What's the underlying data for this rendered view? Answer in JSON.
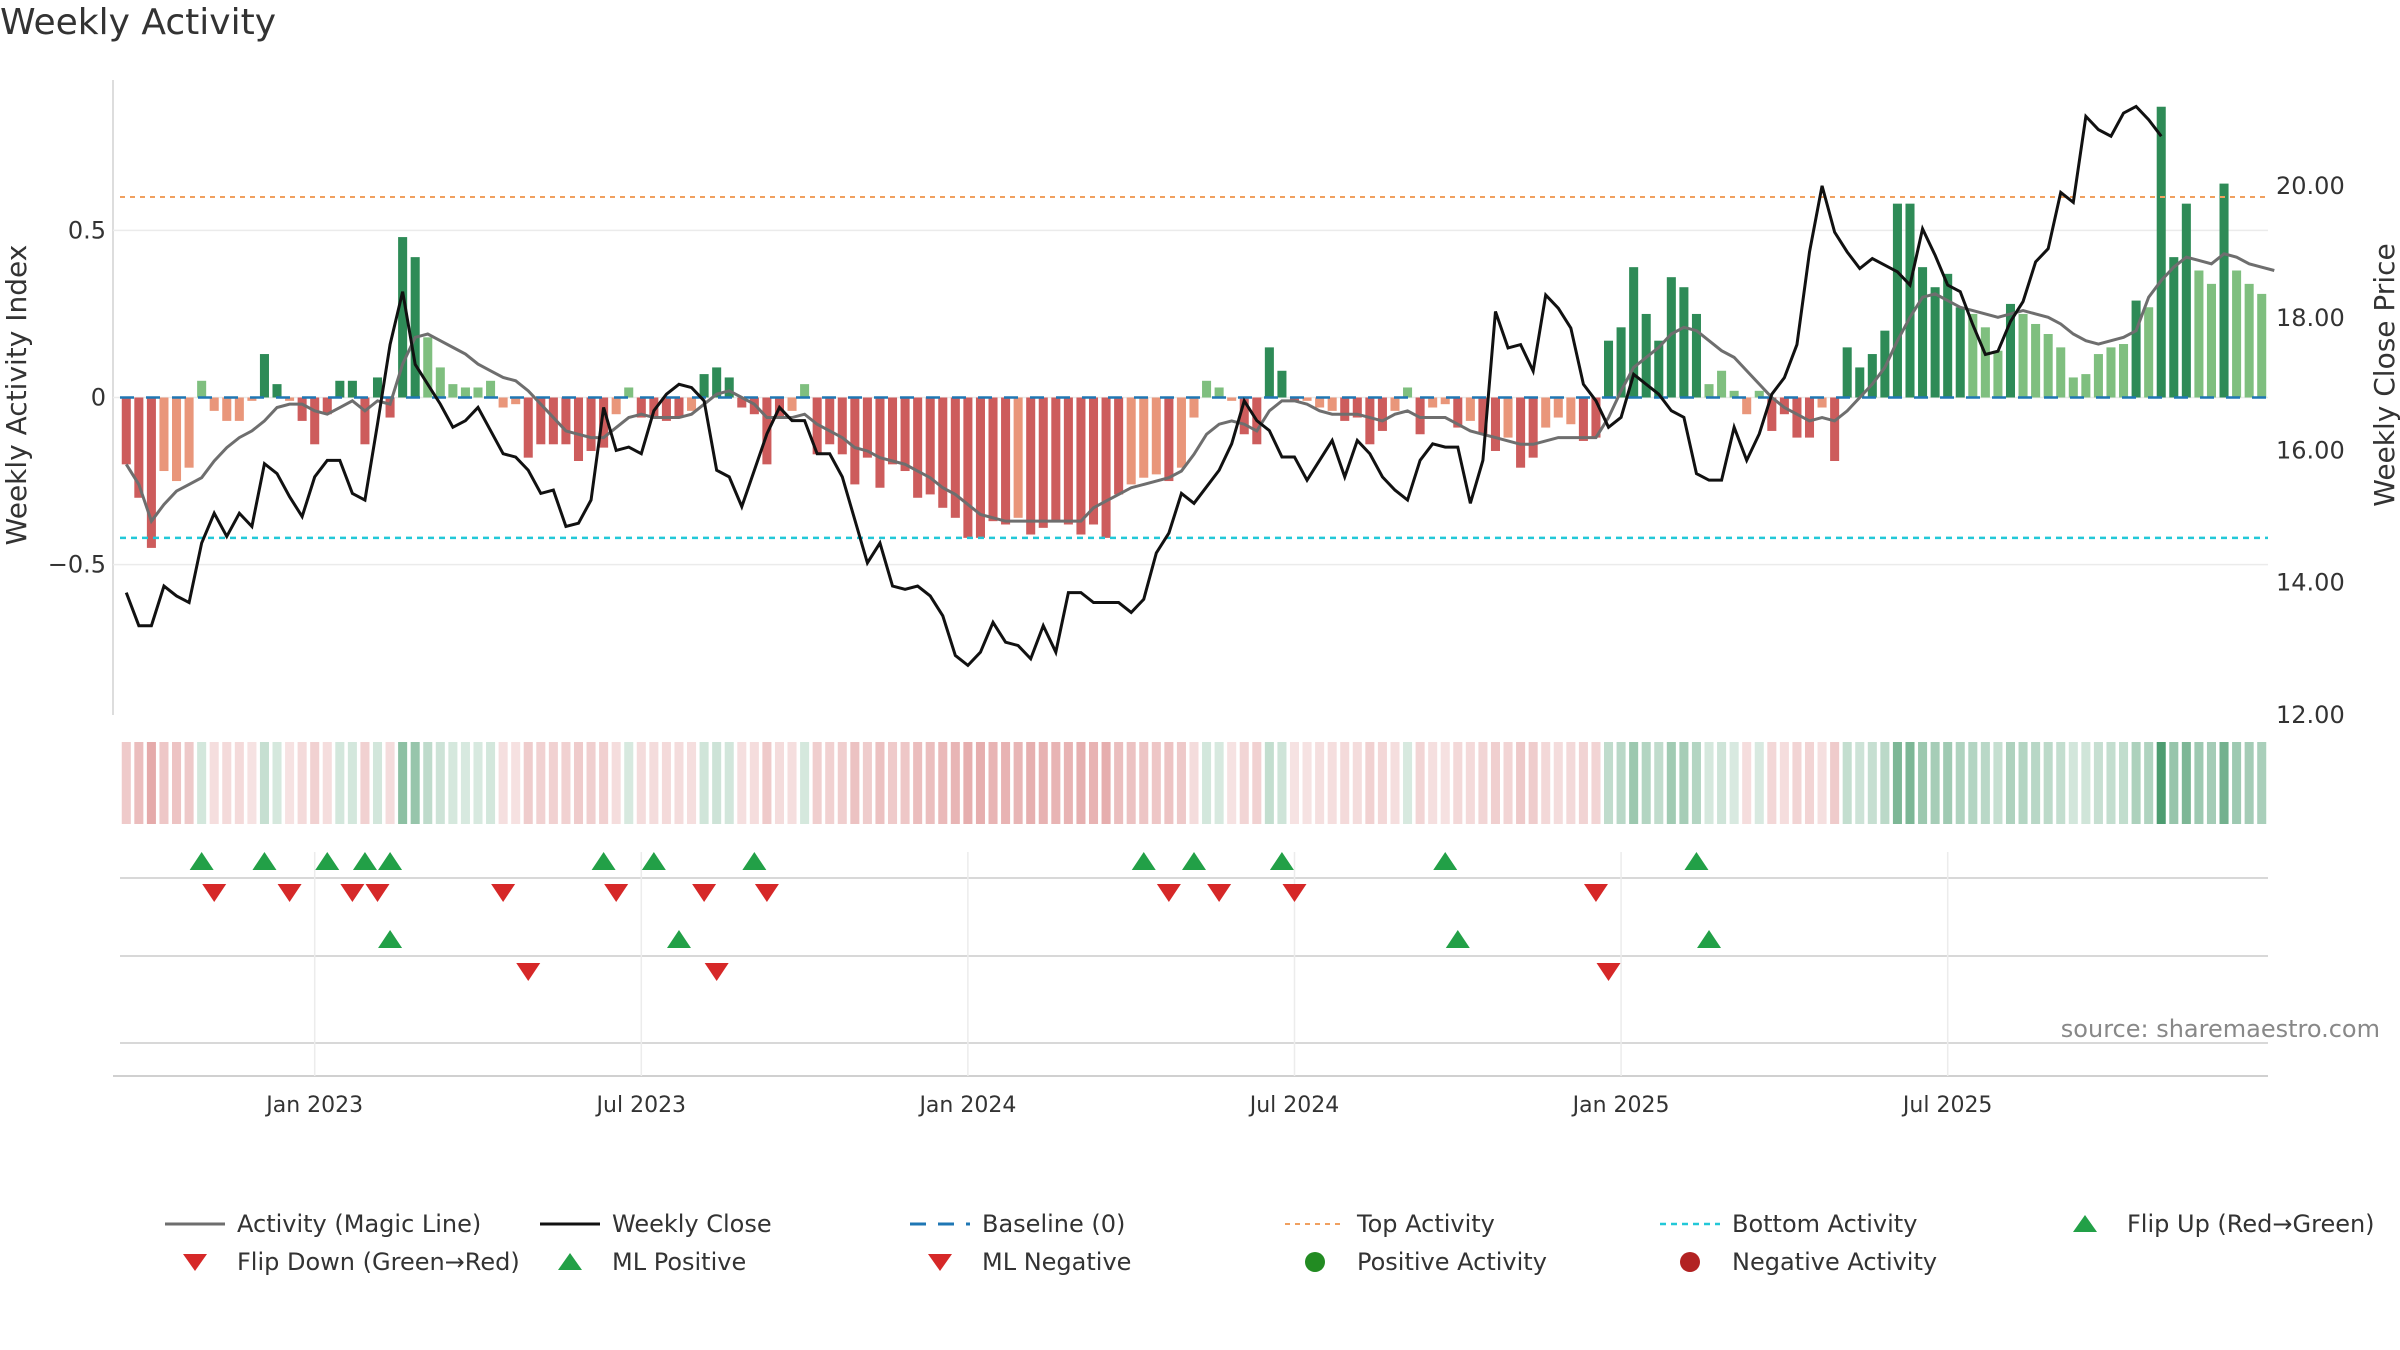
{
  "title": "Weekly Activity",
  "source": "source: sharemaestro.com",
  "colors": {
    "pos_strong": "#2e8b57",
    "pos_light": "#7fbf7f",
    "neg_strong": "#cd5c5c",
    "neg_light": "#e9967a",
    "magic_line": "#6e6e6e",
    "close_line": "#111111",
    "baseline": "#1f77b4",
    "top": "#f0a060",
    "bottom": "#22c8d8",
    "tri_up": "#22a047",
    "tri_down": "#d62828",
    "dot_pos": "#228b22",
    "dot_neg": "#b22222"
  },
  "chart_data": {
    "type": "bar+line",
    "title": "Weekly Activity",
    "ylabel_left": "Weekly Activity Index",
    "ylabel_right": "Weekly Close Price",
    "left_ylim": [
      -0.95,
      0.95
    ],
    "right_ylim": [
      12,
      21.6
    ],
    "left_ticks": [
      {
        "v": 0.5,
        "label": "0.5"
      },
      {
        "v": 0,
        "label": "0"
      },
      {
        "v": -0.5,
        "label": "−0.5"
      }
    ],
    "right_ticks": [
      {
        "v": 20,
        "label": "20.00"
      },
      {
        "v": 18,
        "label": "18.00"
      },
      {
        "v": 16,
        "label": "16.00"
      },
      {
        "v": 14,
        "label": "14.00"
      },
      {
        "v": 12,
        "label": "12.00"
      }
    ],
    "x_ticks": [
      {
        "week": 15,
        "label": "Jan 2023"
      },
      {
        "week": 41,
        "label": "Jul 2023"
      },
      {
        "week": 67,
        "label": "Jan 2024"
      },
      {
        "week": 93,
        "label": "Jul 2024"
      },
      {
        "week": 119,
        "label": "Jan 2025"
      },
      {
        "week": 145,
        "label": "Jul 2025"
      }
    ],
    "top_activity": 0.6,
    "bottom_activity": -0.42,
    "activity": [
      -0.2,
      -0.3,
      -0.45,
      -0.22,
      -0.25,
      -0.21,
      0.05,
      -0.04,
      -0.07,
      -0.07,
      -0.01,
      0.13,
      0.04,
      -0.01,
      -0.07,
      -0.14,
      -0.05,
      0.05,
      0.05,
      -0.14,
      0.06,
      -0.06,
      0.48,
      0.42,
      0.18,
      0.09,
      0.04,
      0.03,
      0.03,
      0.05,
      -0.03,
      -0.02,
      -0.18,
      -0.14,
      -0.14,
      -0.14,
      -0.19,
      -0.16,
      -0.15,
      -0.05,
      0.03,
      -0.06,
      -0.06,
      -0.07,
      -0.06,
      -0.04,
      0.07,
      0.09,
      0.06,
      -0.03,
      -0.05,
      -0.2,
      -0.06,
      -0.04,
      0.04,
      -0.17,
      -0.14,
      -0.17,
      -0.26,
      -0.18,
      -0.27,
      -0.2,
      -0.22,
      -0.3,
      -0.29,
      -0.33,
      -0.36,
      -0.42,
      -0.42,
      -0.37,
      -0.38,
      -0.36,
      -0.41,
      -0.39,
      -0.37,
      -0.38,
      -0.41,
      -0.38,
      -0.42,
      -0.29,
      -0.26,
      -0.24,
      -0.23,
      -0.25,
      -0.21,
      -0.06,
      0.05,
      0.03,
      -0.01,
      -0.11,
      -0.14,
      0.15,
      0.08,
      -0.01,
      -0.01,
      -0.03,
      -0.04,
      -0.07,
      -0.06,
      -0.14,
      -0.1,
      -0.04,
      0.03,
      -0.11,
      -0.03,
      -0.02,
      -0.09,
      -0.07,
      -0.11,
      -0.16,
      -0.12,
      -0.21,
      -0.18,
      -0.09,
      -0.06,
      -0.08,
      -0.13,
      -0.12,
      0.17,
      0.21,
      0.39,
      0.25,
      0.17,
      0.36,
      0.33,
      0.25,
      0.04,
      0.08,
      0.02,
      -0.05,
      0.02,
      -0.1,
      -0.05,
      -0.12,
      -0.12,
      -0.03,
      -0.19,
      0.15,
      0.09,
      0.13,
      0.2,
      0.58,
      0.58,
      0.39,
      0.33,
      0.37,
      0.27,
      0.25,
      0.21,
      0.14,
      0.28,
      0.25,
      0.22,
      0.19,
      0.15,
      0.06,
      0.07,
      0.13,
      0.15,
      0.16,
      0.29,
      0.27,
      0.87,
      0.42,
      0.58,
      0.38,
      0.34,
      0.64,
      0.38,
      0.34,
      0.31
    ],
    "magic_line": [
      -0.2,
      -0.26,
      -0.37,
      -0.32,
      -0.28,
      -0.26,
      -0.24,
      -0.19,
      -0.15,
      -0.12,
      -0.1,
      -0.07,
      -0.03,
      -0.02,
      -0.02,
      -0.04,
      -0.05,
      -0.03,
      -0.01,
      -0.04,
      -0.01,
      -0.02,
      0.1,
      0.18,
      0.19,
      0.17,
      0.15,
      0.13,
      0.1,
      0.08,
      0.06,
      0.05,
      0.02,
      -0.02,
      -0.06,
      -0.1,
      -0.11,
      -0.12,
      -0.12,
      -0.09,
      -0.06,
      -0.05,
      -0.06,
      -0.06,
      -0.06,
      -0.05,
      -0.02,
      0.01,
      0.02,
      0.0,
      -0.02,
      -0.06,
      -0.06,
      -0.06,
      -0.05,
      -0.08,
      -0.1,
      -0.12,
      -0.15,
      -0.16,
      -0.18,
      -0.19,
      -0.2,
      -0.22,
      -0.24,
      -0.27,
      -0.29,
      -0.32,
      -0.35,
      -0.36,
      -0.37,
      -0.37,
      -0.37,
      -0.37,
      -0.37,
      -0.37,
      -0.37,
      -0.33,
      -0.31,
      -0.29,
      -0.27,
      -0.26,
      -0.25,
      -0.24,
      -0.22,
      -0.17,
      -0.11,
      -0.08,
      -0.07,
      -0.08,
      -0.1,
      -0.04,
      -0.01,
      -0.01,
      -0.02,
      -0.04,
      -0.05,
      -0.05,
      -0.05,
      -0.06,
      -0.07,
      -0.05,
      -0.04,
      -0.06,
      -0.06,
      -0.06,
      -0.08,
      -0.1,
      -0.11,
      -0.12,
      -0.13,
      -0.14,
      -0.14,
      -0.13,
      -0.12,
      -0.12,
      -0.12,
      -0.12,
      -0.06,
      0.02,
      0.09,
      0.12,
      0.15,
      0.19,
      0.21,
      0.2,
      0.17,
      0.14,
      0.12,
      0.08,
      0.04,
      0.0,
      -0.03,
      -0.05,
      -0.07,
      -0.06,
      -0.07,
      -0.04,
      0.0,
      0.04,
      0.09,
      0.17,
      0.24,
      0.3,
      0.31,
      0.29,
      0.27,
      0.26,
      0.25,
      0.24,
      0.25,
      0.26,
      0.25,
      0.24,
      0.22,
      0.19,
      0.17,
      0.16,
      0.17,
      0.18,
      0.2,
      0.3,
      0.35,
      0.39,
      0.42,
      0.41,
      0.4,
      0.43,
      0.42,
      0.4,
      0.39,
      0.38
    ],
    "weekly_close": [
      13.85,
      13.35,
      13.35,
      13.95,
      13.8,
      13.7,
      14.6,
      15.05,
      14.7,
      15.05,
      14.85,
      15.8,
      15.65,
      15.3,
      15.0,
      15.6,
      15.85,
      15.85,
      15.35,
      15.25,
      16.4,
      17.6,
      18.4,
      17.3,
      17.0,
      16.7,
      16.35,
      16.45,
      16.65,
      16.3,
      15.95,
      15.9,
      15.7,
      15.35,
      15.4,
      14.85,
      14.9,
      15.25,
      16.65,
      16.0,
      16.05,
      15.95,
      16.6,
      16.85,
      17.0,
      16.95,
      16.75,
      15.7,
      15.6,
      15.15,
      15.7,
      16.25,
      16.65,
      16.45,
      16.45,
      15.95,
      15.95,
      15.6,
      14.95,
      14.3,
      14.6,
      13.95,
      13.9,
      13.95,
      13.8,
      13.5,
      12.9,
      12.75,
      12.95,
      13.4,
      13.1,
      13.05,
      12.85,
      13.35,
      12.95,
      13.85,
      13.85,
      13.7,
      13.7,
      13.7,
      13.55,
      13.75,
      14.45,
      14.75,
      15.35,
      15.2,
      15.45,
      15.7,
      16.1,
      16.75,
      16.45,
      16.3,
      15.9,
      15.9,
      15.55,
      15.85,
      16.15,
      15.6,
      16.15,
      15.95,
      15.6,
      15.4,
      15.25,
      15.85,
      16.1,
      16.05,
      16.05,
      15.2,
      15.85,
      18.1,
      17.55,
      17.6,
      17.2,
      18.35,
      18.15,
      17.85,
      17.0,
      16.75,
      16.35,
      16.5,
      17.15,
      17.0,
      16.85,
      16.6,
      16.5,
      15.65,
      15.55,
      15.55,
      16.35,
      15.85,
      16.25,
      16.85,
      17.1,
      17.6,
      19.0,
      20.0,
      19.3,
      19.0,
      18.75,
      18.9,
      18.8,
      18.7,
      18.5,
      19.35,
      18.95,
      18.5,
      18.4,
      17.9,
      17.45,
      17.5,
      17.95,
      18.25,
      18.85,
      19.05,
      19.9,
      19.75,
      21.05,
      20.85,
      20.75,
      21.1,
      21.2,
      21.0,
      20.75
    ],
    "flip_up": [
      6,
      11,
      16,
      19,
      21,
      38,
      42,
      50,
      81,
      85,
      92,
      105,
      125
    ],
    "flip_down": [
      7,
      13,
      18,
      20,
      30,
      39,
      46,
      51,
      83,
      87,
      93,
      117
    ],
    "ml_positive": [
      21,
      44,
      106,
      126
    ],
    "ml_negative": [
      32,
      47,
      118
    ]
  },
  "legend": [
    {
      "label": "Activity (Magic Line)",
      "symbol": "line-grey"
    },
    {
      "label": "Weekly Close",
      "symbol": "line-black"
    },
    {
      "label": "Baseline (0)",
      "symbol": "dash-blue"
    },
    {
      "label": "Top Activity",
      "symbol": "dot-orange"
    },
    {
      "label": "Bottom Activity",
      "symbol": "dot-cyan"
    },
    {
      "label": "Flip Up (Red→Green)",
      "symbol": "tri-up-green"
    },
    {
      "label": "Flip Down (Green→Red)",
      "symbol": "tri-down-red"
    },
    {
      "label": "ML Positive",
      "symbol": "tri-up-green"
    },
    {
      "label": "ML Negative",
      "symbol": "tri-down-red"
    },
    {
      "label": "Positive Activity",
      "symbol": "circle-green"
    },
    {
      "label": "Negative Activity",
      "symbol": "circle-red"
    }
  ]
}
